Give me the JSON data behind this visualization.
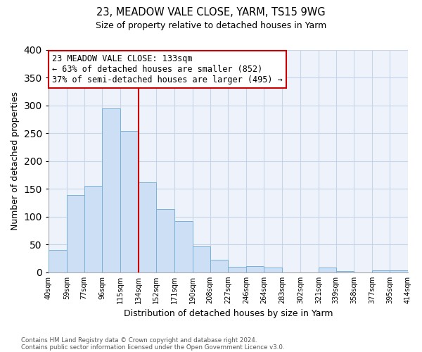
{
  "title1": "23, MEADOW VALE CLOSE, YARM, TS15 9WG",
  "title2": "Size of property relative to detached houses in Yarm",
  "xlabel": "Distribution of detached houses by size in Yarm",
  "ylabel": "Number of detached properties",
  "footnote1": "Contains HM Land Registry data © Crown copyright and database right 2024.",
  "footnote2": "Contains public sector information licensed under the Open Government Licence v3.0.",
  "bar_edges": [
    40,
    59,
    77,
    96,
    115,
    134,
    152,
    171,
    190,
    208,
    227,
    246,
    264,
    283,
    302,
    321,
    339,
    358,
    377,
    395,
    414
  ],
  "bar_heights": [
    40,
    139,
    155,
    294,
    254,
    161,
    113,
    92,
    46,
    22,
    10,
    11,
    8,
    0,
    0,
    8,
    2,
    0,
    3,
    3
  ],
  "tick_labels": [
    "40sqm",
    "59sqm",
    "77sqm",
    "96sqm",
    "115sqm",
    "134sqm",
    "152sqm",
    "171sqm",
    "190sqm",
    "208sqm",
    "227sqm",
    "246sqm",
    "264sqm",
    "283sqm",
    "302sqm",
    "321sqm",
    "339sqm",
    "358sqm",
    "377sqm",
    "395sqm",
    "414sqm"
  ],
  "bar_color": "#ccdff5",
  "bar_edge_color": "#7ab0d8",
  "vline_x": 134,
  "vline_color": "#cc0000",
  "annotation_title": "23 MEADOW VALE CLOSE: 133sqm",
  "annotation_line1": "← 63% of detached houses are smaller (852)",
  "annotation_line2": "37% of semi-detached houses are larger (495) →",
  "annotation_box_color": "#ffffff",
  "annotation_box_edge_color": "#cc0000",
  "ylim": [
    0,
    400
  ],
  "yticks": [
    0,
    50,
    100,
    150,
    200,
    250,
    300,
    350,
    400
  ],
  "background_color": "#ffffff",
  "plot_bg_color": "#eef3fb",
  "grid_color": "#c8d4e8"
}
